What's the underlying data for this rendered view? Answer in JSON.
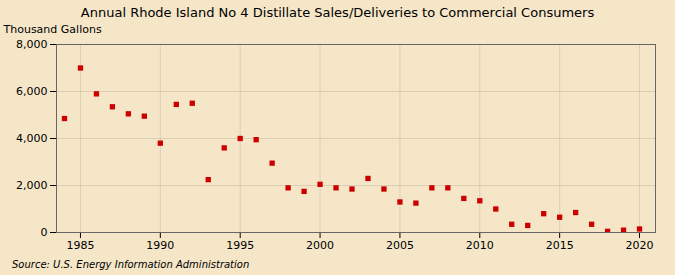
{
  "chart_data": {
    "type": "scatter",
    "title": "Annual Rhode Island No 4 Distillate Sales/Deliveries to Commercial Consumers",
    "ylabel": "Thousand Gallons",
    "source": "Source: U.S. Energy Information Administration",
    "x": [
      1984,
      1985,
      1986,
      1987,
      1988,
      1989,
      1990,
      1991,
      1992,
      1993,
      1994,
      1995,
      1996,
      1997,
      1998,
      1999,
      2000,
      2001,
      2002,
      2003,
      2004,
      2005,
      2006,
      2007,
      2008,
      2009,
      2010,
      2011,
      2012,
      2013,
      2014,
      2015,
      2016,
      2017,
      2018,
      2019,
      2020
    ],
    "values": [
      4850,
      7000,
      5900,
      5350,
      5050,
      4950,
      3800,
      5450,
      5500,
      2250,
      3600,
      4000,
      3950,
      2950,
      1900,
      1750,
      2050,
      1900,
      1850,
      2300,
      1850,
      1300,
      1250,
      1900,
      1900,
      1450,
      1350,
      1000,
      350,
      300,
      800,
      650,
      850,
      350,
      50,
      100,
      150
    ],
    "color": "#cc0000",
    "marker": "square",
    "xlim": [
      1983.5,
      2021
    ],
    "xticks": [
      1985,
      1990,
      1995,
      2000,
      2005,
      2010,
      2015,
      2020
    ],
    "ylim": [
      0,
      8000
    ],
    "yticks": [
      0,
      {
        "value": 2000,
        "label": "2,000"
      },
      {
        "value": 4000,
        "label": "4,000"
      },
      {
        "value": 6000,
        "label": "6,000"
      },
      {
        "value": 8000,
        "label": "8,000"
      }
    ],
    "grid": true
  }
}
